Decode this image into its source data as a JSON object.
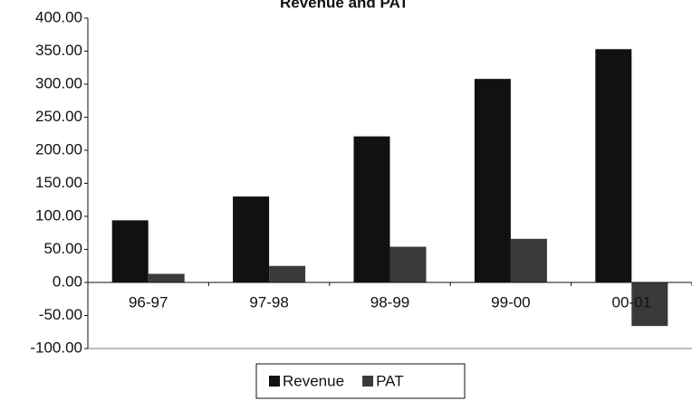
{
  "chart_data": {
    "type": "bar",
    "title": "Revenue and PAT",
    "categories": [
      "96-97",
      "97-98",
      "98-99",
      "99-00",
      "00-01"
    ],
    "series": [
      {
        "name": "Revenue",
        "color": "#111111",
        "values": [
          94,
          130,
          221,
          308,
          353
        ]
      },
      {
        "name": "PAT",
        "color": "#3a3a3a",
        "values": [
          13,
          25,
          54,
          66,
          -66
        ]
      }
    ],
    "ylim": [
      -100,
      400
    ],
    "yticks": [
      {
        "value": -100,
        "label": "-100.00"
      },
      {
        "value": -50,
        "label": "-50.00"
      },
      {
        "value": 0,
        "label": "0.00"
      },
      {
        "value": 50,
        "label": "50.00"
      },
      {
        "value": 100,
        "label": "100.00"
      },
      {
        "value": 150,
        "label": "150.00"
      },
      {
        "value": 200,
        "label": "200.00"
      },
      {
        "value": 250,
        "label": "250.00"
      },
      {
        "value": 300,
        "label": "300.00"
      },
      {
        "value": 350,
        "label": "350.00"
      },
      {
        "value": 400,
        "label": "400.00"
      }
    ],
    "grid": false,
    "legend": "bottom"
  }
}
